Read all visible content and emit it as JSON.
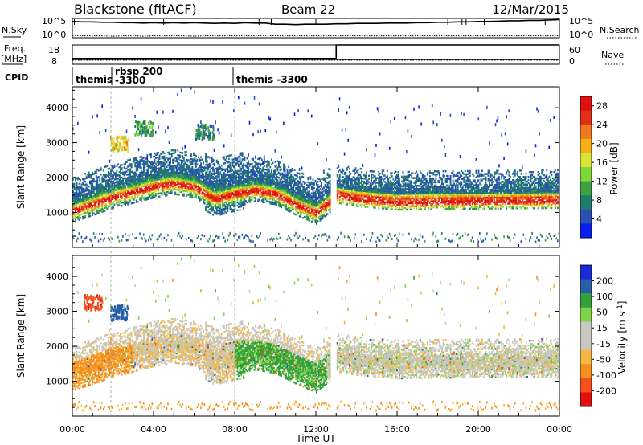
{
  "header": {
    "title": "Blackstone (fitACF)",
    "beam": "Beam 22",
    "date": "12/Mar/2015"
  },
  "noise_panel": {
    "left_label": "N.Sky",
    "right_label": "N.Search",
    "left_ticks": [
      "10^5",
      "10^0"
    ],
    "right_ticks": [
      "10^5",
      "10^0"
    ],
    "sky_level": [
      4.2,
      4.1,
      4.1,
      4.0,
      4.0,
      3.9,
      3.9,
      3.8,
      3.9,
      3.8,
      3.9,
      3.8,
      3.9,
      3.8,
      3.7,
      3.8,
      3.7,
      3.9,
      3.8,
      3.8,
      3.5,
      3.5,
      3.4,
      3.5,
      3.5,
      3.5,
      3.6,
      3.6,
      3.7,
      3.7,
      3.7,
      3.8,
      3.8,
      3.8,
      3.9,
      3.9,
      4.0,
      4.0,
      4.1,
      4.1,
      4.2,
      4.2,
      4.3,
      4.4,
      4.4,
      4.5,
      4.5,
      4.6,
      4.7
    ],
    "search_level": [
      0.6,
      0.5,
      0.5,
      0.5,
      0.4,
      0.5,
      0.5,
      0.4,
      0.5,
      0.5,
      0.5,
      0.5,
      0.4,
      0.5,
      0.5,
      0.5,
      0.5,
      0.5,
      0.5,
      0.6,
      0.5,
      0.5,
      0.5,
      0.5,
      0.5,
      0.5,
      0.5,
      0.5,
      0.5,
      0.5,
      0.5,
      0.5,
      0.5,
      0.5,
      0.5,
      0.5,
      0.5,
      0.5,
      0.5,
      0.5,
      0.5,
      0.5,
      0.5,
      0.5,
      0.5,
      0.5,
      0.5,
      0.5,
      0.5
    ]
  },
  "freq_panel": {
    "left_label_1": "Freq.",
    "left_label_2": "[MHz]",
    "right_label": "Nave",
    "left_ticks": [
      "18",
      "8"
    ],
    "right_ticks": [
      "60",
      "0"
    ],
    "freq_mhz": 10.5,
    "nave_before": 18,
    "nave_after": 60,
    "nave_change_hour": 13.0
  },
  "cpid": {
    "label": "CPID",
    "entries": [
      {
        "text": "themis",
        "start_hour": 0.0
      },
      {
        "text": "rbsp 200",
        "start_hour": 1.9
      },
      {
        "text": "-3300",
        "start_hour": 1.9
      },
      {
        "text": "themis -3300",
        "start_hour": 8.0
      }
    ]
  },
  "x_axis": {
    "label": "Time UT",
    "ticks": [
      "00:00",
      "04:00",
      "08:00",
      "12:00",
      "16:00",
      "20:00",
      "00:00"
    ]
  },
  "colors": {
    "power_scale": [
      "#0a1eee",
      "#2b4fb5",
      "#207d6b",
      "#3fa040",
      "#7ed63b",
      "#d8e63a",
      "#f5b015",
      "#f0781e",
      "#e0301a",
      "#e01010"
    ],
    "velocity_scale": [
      "#e01010",
      "#f3501d",
      "#f5901f",
      "#f5b842",
      "#c8c8c0",
      "#c8c8c0",
      "#7fd34a",
      "#34a03a",
      "#2660a8",
      "#1a2ad5"
    ]
  },
  "chart_data": [
    {
      "type": "heatmap",
      "title": "",
      "ylabel": "Slant Range [km]",
      "xlabel": "",
      "xlim": [
        0,
        24
      ],
      "ylim": [
        0,
        4600
      ],
      "y_ticks": [
        1000,
        2000,
        3000,
        4000
      ],
      "colorbar": {
        "label": "Power [dB]",
        "ticks": [
          4,
          8,
          12,
          16,
          20,
          24,
          28
        ],
        "range": [
          0,
          30
        ]
      },
      "band_center_km": [
        [
          0.0,
          1250
        ],
        [
          1.0,
          1450
        ],
        [
          2.0,
          1650
        ],
        [
          3.0,
          1800
        ],
        [
          4.0,
          1950
        ],
        [
          5.0,
          2050
        ],
        [
          6.0,
          1950
        ],
        [
          7.0,
          1600
        ],
        [
          8.0,
          1750
        ],
        [
          9.0,
          1850
        ],
        [
          10.0,
          1750
        ],
        [
          11.0,
          1450
        ],
        [
          12.0,
          1200
        ],
        [
          13.0,
          1700
        ],
        [
          14.0,
          1600
        ],
        [
          16.0,
          1500
        ],
        [
          18.0,
          1520
        ],
        [
          20.0,
          1530
        ],
        [
          22.0,
          1540
        ],
        [
          24.0,
          1550
        ]
      ],
      "patches": [
        {
          "hour": 2.3,
          "range_km": 2950,
          "value": 18
        },
        {
          "hour": 3.5,
          "range_km": 3400,
          "value": 10
        },
        {
          "hour": 6.5,
          "range_km": 3300,
          "value": 8
        }
      ]
    },
    {
      "type": "heatmap",
      "title": "",
      "ylabel": "Slant Range [km]",
      "xlabel": "Time UT",
      "xlim": [
        0,
        24
      ],
      "ylim": [
        0,
        4600
      ],
      "y_ticks": [
        1000,
        2000,
        3000,
        4000
      ],
      "colorbar": {
        "label": "Velocity [m s^-1]",
        "ticks": [
          200,
          100,
          50,
          15,
          -15,
          -50,
          -100,
          -200
        ],
        "range": [
          -250,
          250
        ]
      },
      "regions": [
        {
          "hours": [
            0,
            3
          ],
          "range_km": [
            1200,
            1700
          ],
          "velocity": -60
        },
        {
          "hours": [
            3,
            8
          ],
          "range_km": [
            1200,
            2400
          ],
          "velocity": -10
        },
        {
          "hours": [
            8,
            12.5
          ],
          "range_km": [
            1200,
            2300
          ],
          "velocity": 60
        },
        {
          "hours": [
            13,
            24
          ],
          "range_km": [
            1300,
            2200
          ],
          "velocity": 0
        }
      ],
      "patches": [
        {
          "hour": 2.3,
          "range_km": 2950,
          "value": 150
        },
        {
          "hour": 1.0,
          "range_km": 3250,
          "value": -180
        }
      ]
    }
  ]
}
